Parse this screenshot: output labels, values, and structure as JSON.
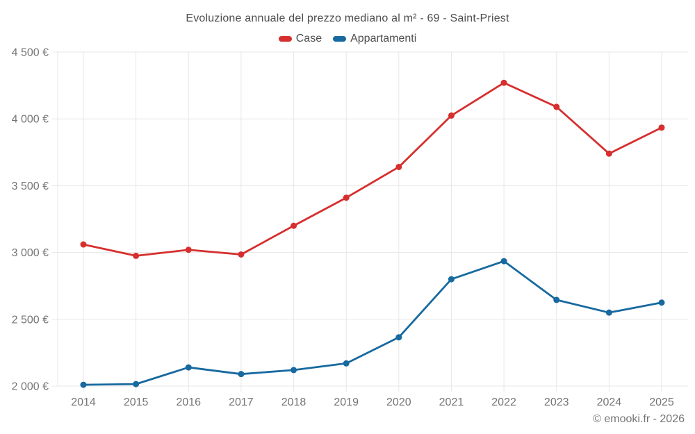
{
  "header": {
    "title": "Evoluzione annuale del prezzo mediano al m² - 69 - Saint-Priest"
  },
  "footer": {
    "credit": "© emooki.fr - 2026"
  },
  "colors": {
    "case_red": "#d62f2e",
    "appartamenti_blue": "#17699f",
    "grid": "#e7e7e7",
    "axis_label": "#757575",
    "title_text": "#4d4d4d"
  },
  "chart_data": {
    "type": "line",
    "title": "Evoluzione annuale del prezzo mediano al m² - 69 - Saint-Priest",
    "categories": [
      "2014",
      "2015",
      "2016",
      "2017",
      "2018",
      "2019",
      "2020",
      "2021",
      "2022",
      "2023",
      "2024",
      "2025"
    ],
    "series": [
      {
        "name": "Case",
        "color": "#d62f2e",
        "values": [
          3060,
          2975,
          3020,
          2985,
          3200,
          3410,
          3640,
          4025,
          4270,
          4090,
          3740,
          3935
        ]
      },
      {
        "name": "Appartamenti",
        "color": "#17699f",
        "values": [
          2010,
          2015,
          2140,
          2090,
          2120,
          2170,
          2365,
          2800,
          2935,
          2645,
          2550,
          2625
        ]
      }
    ],
    "xlabel": "",
    "ylabel": "",
    "ylim": [
      2000,
      4500
    ],
    "yticks": [
      {
        "value": 2000,
        "label": "2 000 €"
      },
      {
        "value": 2500,
        "label": "2 500 €"
      },
      {
        "value": 3000,
        "label": "3 000 €"
      },
      {
        "value": 3500,
        "label": "3 500 €"
      },
      {
        "value": 4000,
        "label": "4 000 €"
      },
      {
        "value": 4500,
        "label": "4 500 €"
      }
    ],
    "grid": true,
    "legend_position": "top",
    "annotation": "© emooki.fr - 2026"
  }
}
